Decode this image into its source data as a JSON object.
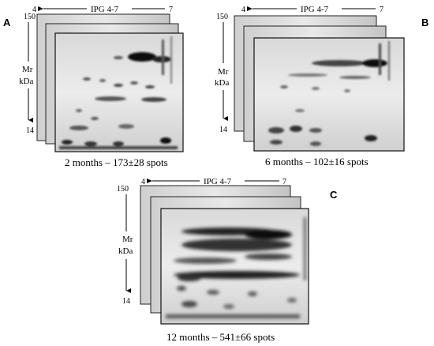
{
  "panels": [
    {
      "letter": "A",
      "ph_left": "4",
      "ph_right": "7",
      "ipg_label": "IPG 4-7",
      "mw_top": "150",
      "mw_bottom": "14",
      "mr_label": "Mr",
      "kda_label": "kDa",
      "caption": "2 months – 173±28 spots"
    },
    {
      "letter": "B",
      "ph_left": "4",
      "ph_right": "7",
      "ipg_label": "IPG 4-7",
      "mw_top": "150",
      "mw_bottom": "14",
      "mr_label": "Mr",
      "kda_label": "kDa",
      "caption": "6 months – 102±16 spots"
    },
    {
      "letter": "C",
      "ph_left": "4",
      "ph_right": "7",
      "ipg_label": "IPG 4-7",
      "mw_top": "150",
      "mw_bottom": "14",
      "mr_label": "Mr",
      "kda_label": "kDa",
      "caption": "12 months – 541±66 spots"
    }
  ]
}
